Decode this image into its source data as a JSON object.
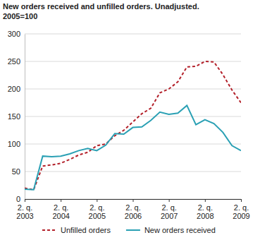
{
  "chart_data": {
    "type": "line",
    "title": "New orders received and unfilled orders. Unadjusted.",
    "subtitle": "2005=100",
    "categories": [
      "2. q. 2003",
      null,
      null,
      null,
      "2. q. 2004",
      null,
      null,
      null,
      "2. q. 2005",
      null,
      null,
      null,
      "2. q. 2006",
      null,
      null,
      null,
      "2. q. 2007",
      null,
      null,
      null,
      "2. q. 2008",
      null,
      null,
      null,
      "2. q. 2009"
    ],
    "series": [
      {
        "name": "Unfilled orders",
        "color": "#b3202a",
        "line_style": "dashed",
        "values": [
          20,
          17,
          60,
          62,
          65,
          72,
          80,
          85,
          97,
          100,
          115,
          125,
          140,
          155,
          165,
          193,
          200,
          213,
          240,
          241,
          250,
          249,
          226,
          198,
          175
        ]
      },
      {
        "name": "New orders received",
        "color": "#2aa0b4",
        "line_style": "solid",
        "values": [
          18,
          17,
          78,
          77,
          78,
          82,
          88,
          92,
          88,
          98,
          119,
          118,
          130,
          131,
          143,
          158,
          154,
          156,
          170,
          135,
          144,
          137,
          121,
          97,
          88
        ]
      }
    ],
    "ylim": [
      0,
      300
    ],
    "yticks": [
      0,
      50,
      100,
      150,
      200,
      250,
      300
    ],
    "grid": true,
    "legend": "bottom"
  }
}
